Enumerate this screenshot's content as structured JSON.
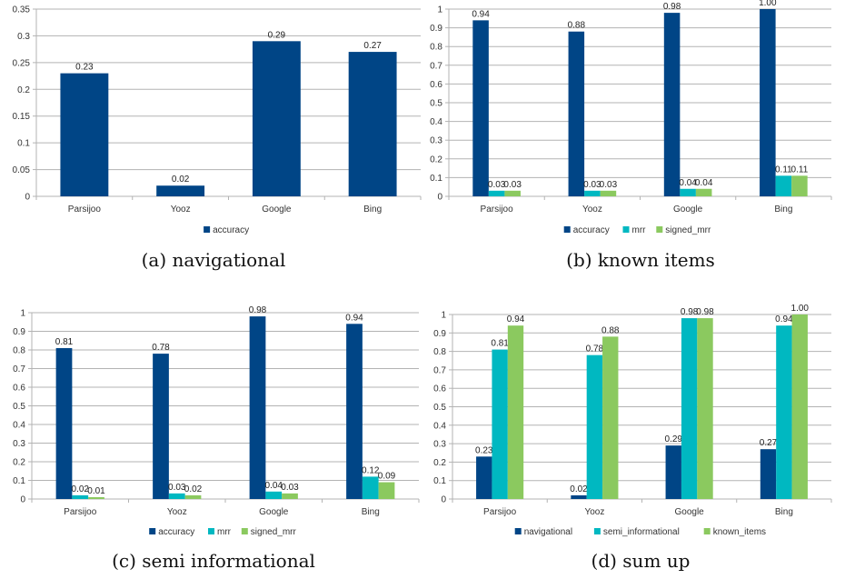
{
  "chart_data": [
    {
      "type": "bar",
      "caption": "(a) navigational",
      "categories": [
        "Parsijoo",
        "Yooz",
        "Google",
        "Bing"
      ],
      "series": [
        {
          "name": "accuracy",
          "values": [
            0.23,
            0.02,
            0.29,
            0.27
          ],
          "labels": [
            "0.23",
            "0.02",
            "0.29",
            "0.27"
          ],
          "color": "#004586"
        }
      ],
      "ylim": [
        0,
        0.35
      ],
      "yticks": [
        "0",
        "0.05",
        "0.1",
        "0.15",
        "0.2",
        "0.25",
        "0.3",
        "0.35"
      ],
      "grid": true,
      "legend": "bottom"
    },
    {
      "type": "bar",
      "caption": "(b) known items",
      "categories": [
        "Parsijoo",
        "Yooz",
        "Google",
        "Bing"
      ],
      "series": [
        {
          "name": "accuracy",
          "values": [
            0.94,
            0.88,
            0.98,
            1.0
          ],
          "labels": [
            "0.94",
            "0.88",
            "0.98",
            "1.00"
          ],
          "color": "#004586"
        },
        {
          "name": "mrr",
          "values": [
            0.03,
            0.03,
            0.04,
            0.11
          ],
          "labels": [
            "0.03",
            "0.03",
            "0.04",
            "0.11"
          ],
          "color": "#00b8c1"
        },
        {
          "name": "signed_mrr",
          "values": [
            0.03,
            0.03,
            0.04,
            0.11
          ],
          "labels": [
            "0.03",
            "0.03",
            "0.04",
            "0.11"
          ],
          "color": "#8bc95f"
        }
      ],
      "ylim": [
        0,
        1
      ],
      "yticks": [
        "0",
        "0.1",
        "0.2",
        "0.3",
        "0.4",
        "0.5",
        "0.6",
        "0.7",
        "0.8",
        "0.9",
        "1"
      ],
      "grid": true,
      "legend": "bottom"
    },
    {
      "type": "bar",
      "caption": "(c) semi informational",
      "categories": [
        "Parsijoo",
        "Yooz",
        "Google",
        "Bing"
      ],
      "series": [
        {
          "name": "accuracy",
          "values": [
            0.81,
            0.78,
            0.98,
            0.94
          ],
          "labels": [
            "0.81",
            "0.78",
            "0.98",
            "0.94"
          ],
          "color": "#004586"
        },
        {
          "name": "mrr",
          "values": [
            0.02,
            0.03,
            0.04,
            0.12
          ],
          "labels": [
            "0.02",
            "0.03",
            "0.04",
            "0.12"
          ],
          "color": "#00b8c1"
        },
        {
          "name": "signed_mrr",
          "values": [
            0.01,
            0.02,
            0.03,
            0.09
          ],
          "labels": [
            "0.01",
            "0.02",
            "0.03",
            "0.09"
          ],
          "color": "#8bc95f"
        }
      ],
      "ylim": [
        0,
        1
      ],
      "yticks": [
        "0",
        "0.1",
        "0.2",
        "0.3",
        "0.4",
        "0.5",
        "0.6",
        "0.7",
        "0.8",
        "0.9",
        "1"
      ],
      "grid": true,
      "legend": "bottom"
    },
    {
      "type": "bar",
      "caption": "(d) sum up",
      "categories": [
        "Parsijoo",
        "Yooz",
        "Google",
        "Bing"
      ],
      "series": [
        {
          "name": "navigational",
          "values": [
            0.23,
            0.02,
            0.29,
            0.27
          ],
          "labels": [
            "0.23",
            "0.02",
            "0.29",
            "0.27"
          ],
          "color": "#004586"
        },
        {
          "name": "semi_informational",
          "values": [
            0.81,
            0.78,
            0.98,
            0.94
          ],
          "labels": [
            "0.81",
            "0.78",
            "0.98",
            "0.94"
          ],
          "color": "#00b8c1"
        },
        {
          "name": "known_items",
          "values": [
            0.94,
            0.88,
            0.98,
            1.0
          ],
          "labels": [
            "0.94",
            "0.88",
            "0.98",
            "1.00"
          ],
          "color": "#8bc95f"
        }
      ],
      "ylim": [
        0,
        1
      ],
      "yticks": [
        "0",
        "0.1",
        "0.2",
        "0.3",
        "0.4",
        "0.5",
        "0.6",
        "0.7",
        "0.8",
        "0.9",
        "1"
      ],
      "grid": true,
      "legend": "bottom"
    }
  ]
}
